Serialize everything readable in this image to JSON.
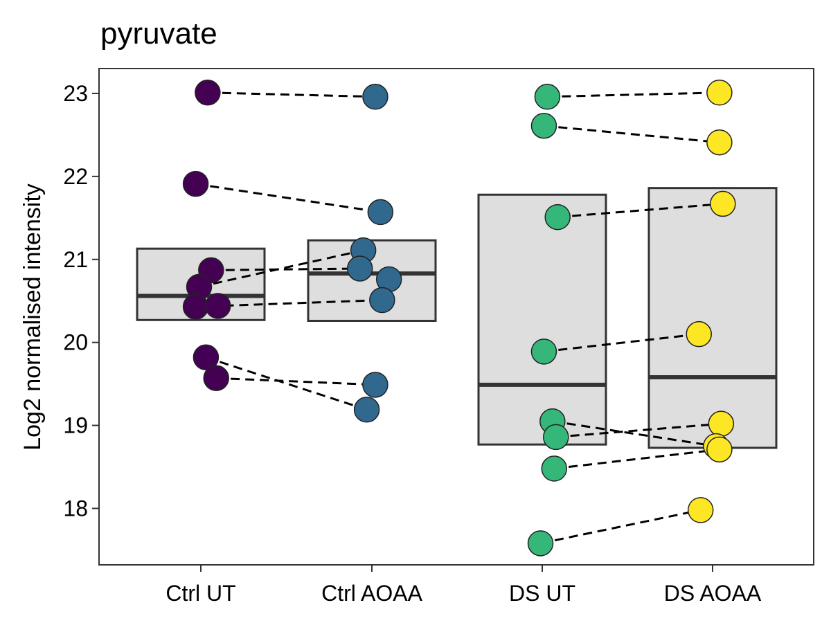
{
  "chart_data": {
    "type": "box-paired-scatter",
    "title": "pyruvate",
    "xlabel": "",
    "ylabel": "Log2 normalised intensity",
    "ylim": [
      17.32,
      23.3
    ],
    "yticks": [
      18,
      19,
      20,
      21,
      22,
      23
    ],
    "categories": [
      "Ctrl UT",
      "Ctrl AOAA",
      "DS UT",
      "DS AOAA"
    ],
    "colors": [
      "#440154",
      "#31688E",
      "#35B779",
      "#FDE725"
    ],
    "box_fill": "#DEDEDE",
    "box_stroke": "#333333",
    "grid": false,
    "legend": "none",
    "boxes": [
      {
        "q1": 20.27,
        "median": 20.56,
        "q3": 21.13
      },
      {
        "q1": 20.26,
        "median": 20.83,
        "q3": 21.23
      },
      {
        "q1": 18.77,
        "median": 19.49,
        "q3": 21.78
      },
      {
        "q1": 18.73,
        "median": 19.58,
        "q3": 21.86
      }
    ],
    "points": [
      [
        {
          "x": 0.04,
          "y": 23.01
        },
        {
          "x": -0.03,
          "y": 21.91
        },
        {
          "x": 0.06,
          "y": 20.87
        },
        {
          "x": -0.01,
          "y": 20.67
        },
        {
          "x": -0.03,
          "y": 20.43
        },
        {
          "x": 0.1,
          "y": 20.44
        },
        {
          "x": 0.03,
          "y": 19.82
        },
        {
          "x": 0.09,
          "y": 19.57
        }
      ],
      [
        {
          "x": 0.02,
          "y": 22.96
        },
        {
          "x": 0.05,
          "y": 21.57
        },
        {
          "x": -0.05,
          "y": 21.11
        },
        {
          "x": -0.07,
          "y": 20.89
        },
        {
          "x": 0.1,
          "y": 20.76
        },
        {
          "x": 0.06,
          "y": 20.51
        },
        {
          "x": 0.02,
          "y": 19.49
        },
        {
          "x": -0.03,
          "y": 19.19
        }
      ],
      [
        {
          "x": 0.03,
          "y": 22.96
        },
        {
          "x": 0.01,
          "y": 22.61
        },
        {
          "x": 0.09,
          "y": 21.51
        },
        {
          "x": 0.01,
          "y": 19.89
        },
        {
          "x": 0.06,
          "y": 19.05
        },
        {
          "x": 0.08,
          "y": 18.86
        },
        {
          "x": 0.07,
          "y": 18.48
        },
        {
          "x": -0.01,
          "y": 17.58
        }
      ],
      [
        {
          "x": 0.04,
          "y": 23.01
        },
        {
          "x": 0.04,
          "y": 22.41
        },
        {
          "x": 0.06,
          "y": 21.67
        },
        {
          "x": -0.08,
          "y": 20.1
        },
        {
          "x": 0.05,
          "y": 19.02
        },
        {
          "x": 0.02,
          "y": 18.75
        },
        {
          "x": 0.04,
          "y": 18.71
        },
        {
          "x": -0.07,
          "y": 17.98
        }
      ]
    ],
    "pair_links": [
      {
        "from": [
          0,
          0
        ],
        "to": [
          1,
          0
        ]
      },
      {
        "from": [
          0,
          1
        ],
        "to": [
          1,
          1
        ]
      },
      {
        "from": [
          0,
          2
        ],
        "to": [
          1,
          3
        ]
      },
      {
        "from": [
          0,
          3
        ],
        "to": [
          1,
          2
        ]
      },
      {
        "from": [
          0,
          4
        ],
        "to": [
          1,
          5
        ]
      },
      {
        "from": [
          0,
          6
        ],
        "to": [
          1,
          7
        ]
      },
      {
        "from": [
          0,
          7
        ],
        "to": [
          1,
          6
        ]
      },
      {
        "from": [
          2,
          0
        ],
        "to": [
          3,
          0
        ]
      },
      {
        "from": [
          2,
          1
        ],
        "to": [
          3,
          1
        ]
      },
      {
        "from": [
          2,
          2
        ],
        "to": [
          3,
          2
        ]
      },
      {
        "from": [
          2,
          3
        ],
        "to": [
          3,
          3
        ]
      },
      {
        "from": [
          2,
          4
        ],
        "to": [
          3,
          5
        ]
      },
      {
        "from": [
          2,
          5
        ],
        "to": [
          3,
          4
        ]
      },
      {
        "from": [
          2,
          6
        ],
        "to": [
          3,
          6
        ]
      },
      {
        "from": [
          2,
          7
        ],
        "to": [
          3,
          7
        ]
      }
    ]
  }
}
